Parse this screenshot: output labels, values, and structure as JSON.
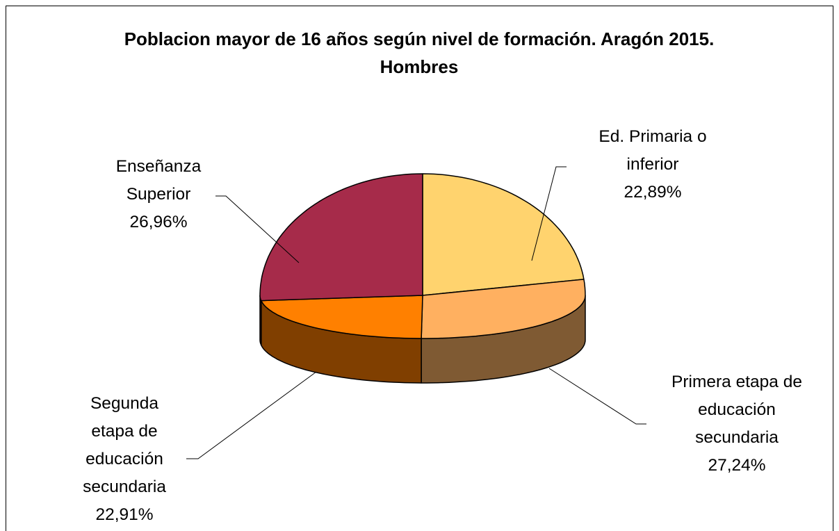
{
  "chart_data": {
    "type": "pie",
    "title": "Poblacion mayor de 16 años según nivel de formación. Aragón 2015. Hombres",
    "categories": [
      "Ed. Primaria o inferior",
      "Primera etapa de educación secundaria",
      "Segunda etapa de educación secundaria",
      "Enseñanza Superior"
    ],
    "values": [
      22.89,
      27.24,
      22.91,
      26.96
    ],
    "value_labels": [
      "22,89%",
      "27,24%",
      "22,91%",
      "26,96%"
    ],
    "colors": [
      "#FFD36E",
      "#FFB060",
      "#FF8000",
      "#A62B4A"
    ],
    "side_colors": [
      "#806937",
      "#7F5A33",
      "#803F00",
      "#531525"
    ]
  }
}
